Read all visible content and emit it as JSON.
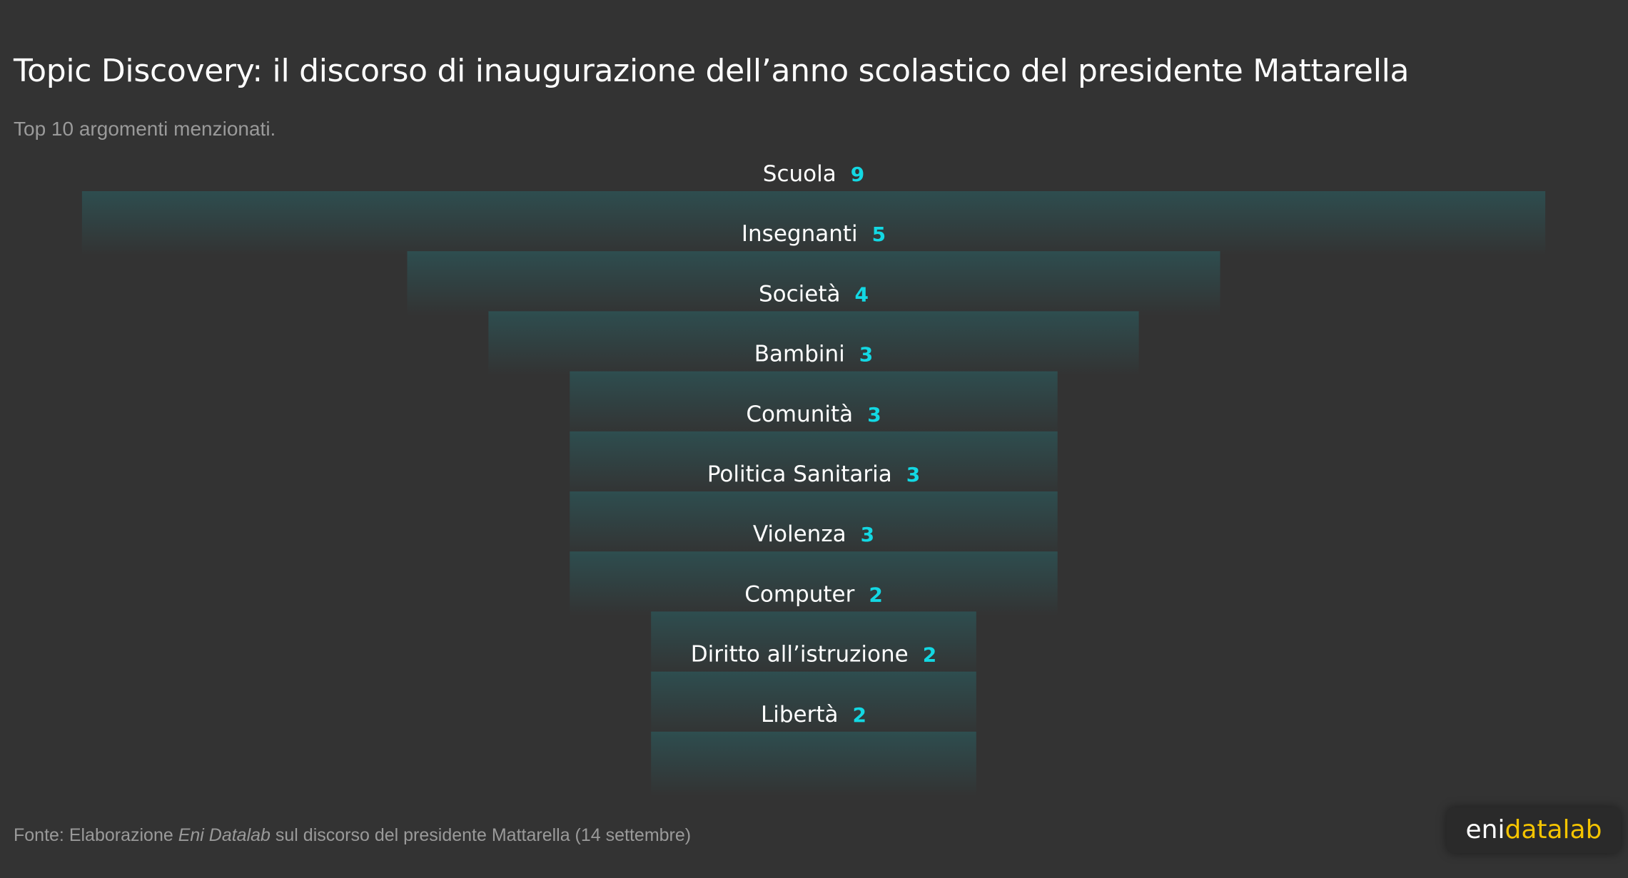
{
  "header": {
    "title": "Topic Discovery: il discorso di inaugurazione dell’anno scolastico del presidente Mattarella",
    "subtitle": "Top 10 argomenti menzionati."
  },
  "footer": {
    "prefix": "Fonte: Elaborazione ",
    "source_name": "Eni Datalab",
    "suffix": " sul discorso del presidente Mattarella (14 settembre)"
  },
  "logo": {
    "part1": "eni",
    "part2": "datalab"
  },
  "colors": {
    "background": "#333333",
    "accent": "#13d8e3",
    "label": "#ffffff",
    "muted": "#9a9a9a",
    "logo_yellow": "#f5c400"
  },
  "chart_data": {
    "type": "bar",
    "style": "funnel",
    "title": "Topic Discovery: il discorso di inaugurazione dell’anno scolastico del presidente Mattarella",
    "subtitle": "Top 10 argomenti menzionati.",
    "categories": [
      "Scuola",
      "Insegnanti",
      "Società",
      "Bambini",
      "Comunità",
      "Politica Sanitaria",
      "Violenza",
      "Computer",
      "Diritto all’istruzione",
      "Libertà"
    ],
    "values": [
      9,
      5,
      4,
      3,
      3,
      3,
      3,
      2,
      2,
      2
    ],
    "xlabel": "",
    "ylabel": ""
  }
}
